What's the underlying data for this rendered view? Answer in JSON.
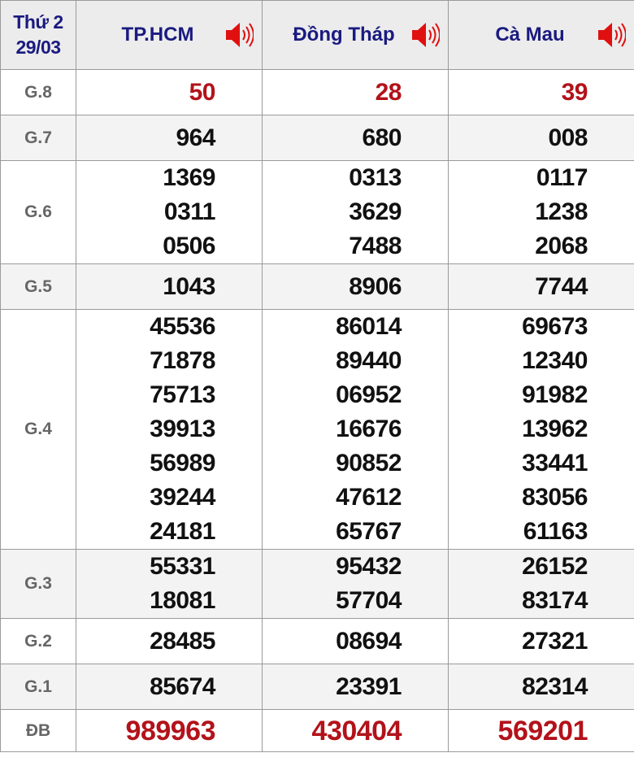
{
  "header": {
    "day": "Thứ 2",
    "date": "29/03",
    "provinces": [
      "TP.HCM",
      "Đồng Tháp",
      "Cà Mau"
    ],
    "speaker_icon": "speaker-volume-icon"
  },
  "colors": {
    "header_text": "#1a1a80",
    "highlight": "#b3121a",
    "label": "#666666",
    "speaker": "#e01010"
  },
  "prizes": [
    {
      "label": "G.8",
      "values": [
        [
          "50"
        ],
        [
          "28"
        ],
        [
          "39"
        ]
      ],
      "highlight": true
    },
    {
      "label": "G.7",
      "values": [
        [
          "964"
        ],
        [
          "680"
        ],
        [
          "008"
        ]
      ]
    },
    {
      "label": "G.6",
      "values": [
        [
          "1369",
          "0311",
          "0506"
        ],
        [
          "0313",
          "3629",
          "7488"
        ],
        [
          "0117",
          "1238",
          "2068"
        ]
      ]
    },
    {
      "label": "G.5",
      "values": [
        [
          "1043"
        ],
        [
          "8906"
        ],
        [
          "7744"
        ]
      ]
    },
    {
      "label": "G.4",
      "values": [
        [
          "45536",
          "71878",
          "75713",
          "39913",
          "56989",
          "39244",
          "24181"
        ],
        [
          "86014",
          "89440",
          "06952",
          "16676",
          "90852",
          "47612",
          "65767"
        ],
        [
          "69673",
          "12340",
          "91982",
          "13962",
          "33441",
          "83056",
          "61163"
        ]
      ]
    },
    {
      "label": "G.3",
      "values": [
        [
          "55331",
          "18081"
        ],
        [
          "95432",
          "57704"
        ],
        [
          "26152",
          "83174"
        ]
      ]
    },
    {
      "label": "G.2",
      "values": [
        [
          "28485"
        ],
        [
          "08694"
        ],
        [
          "27321"
        ]
      ]
    },
    {
      "label": "G.1",
      "values": [
        [
          "85674"
        ],
        [
          "23391"
        ],
        [
          "82314"
        ]
      ]
    },
    {
      "label": "ĐB",
      "values": [
        [
          "989963"
        ],
        [
          "430404"
        ],
        [
          "569201"
        ]
      ],
      "highlight": true,
      "special": true
    }
  ]
}
